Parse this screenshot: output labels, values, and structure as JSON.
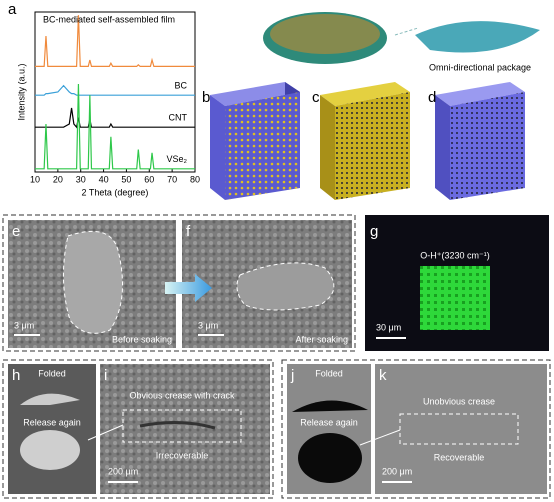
{
  "chart_data": {
    "type": "line",
    "xlabel": "2 Theta (degree)",
    "ylabel": "Intensity (a.u.)",
    "x": [
      10,
      14,
      14.8,
      15.6,
      20,
      22.5,
      25,
      26,
      27,
      28.2,
      29,
      29.8,
      33.3,
      34,
      34.7,
      42.5,
      43.2,
      44,
      54.5,
      55.2,
      56,
      60.5,
      61.2,
      62,
      70,
      80
    ],
    "xlim": [
      10,
      80
    ],
    "xticks": [
      10,
      20,
      30,
      40,
      50,
      60,
      70,
      80
    ],
    "ylim": [
      0,
      100
    ],
    "series": [
      {
        "name": "BC-mediated self-assembled film",
        "color": "#f08a3c",
        "values": [
          66,
          66,
          85,
          66,
          66,
          66,
          66,
          66,
          66,
          66,
          98,
          66,
          66,
          70,
          66,
          66,
          68,
          66,
          66,
          67,
          66,
          66,
          70,
          66,
          66,
          66
        ]
      },
      {
        "name": "BC",
        "color": "#3aa0d8",
        "values": [
          48,
          48,
          49,
          49,
          50,
          54,
          50,
          49,
          49,
          48,
          48,
          48,
          48,
          48,
          48,
          48,
          48,
          48,
          48,
          48,
          48,
          48,
          48,
          48,
          48,
          48
        ]
      },
      {
        "name": "CNT",
        "color": "#000000",
        "values": [
          28,
          28,
          28,
          28,
          28,
          28,
          30,
          40,
          30,
          28,
          34,
          28,
          28,
          33,
          28,
          28,
          30,
          28,
          28,
          28,
          28,
          28,
          28,
          28,
          28,
          28
        ]
      },
      {
        "name": "VSe₂",
        "color": "#2ec84a",
        "values": [
          2,
          2,
          30,
          2,
          2,
          2,
          2,
          2,
          2,
          2,
          55,
          2,
          2,
          48,
          2,
          2,
          22,
          2,
          2,
          14,
          2,
          2,
          12,
          2,
          2,
          2
        ]
      }
    ]
  },
  "panel_letters": [
    "a",
    "b",
    "c",
    "d",
    "e",
    "f",
    "g",
    "h",
    "i",
    "j",
    "k"
  ],
  "package_label": "Omni-directional package",
  "soaking": {
    "before": "Before soaking",
    "after": "After soaking",
    "scale": "3 μm"
  },
  "raman": {
    "label": "O-H⁺(3230 cm⁻¹)",
    "scale": "30 μm"
  },
  "folding": {
    "folded": "Folded",
    "release": "Release again",
    "scale": "200 μm"
  },
  "crease_bad": {
    "title": "Obvious crease with crack",
    "result": "Irrecoverable"
  },
  "crease_good": {
    "title": "Unobvious crease",
    "result": "Recoverable"
  }
}
